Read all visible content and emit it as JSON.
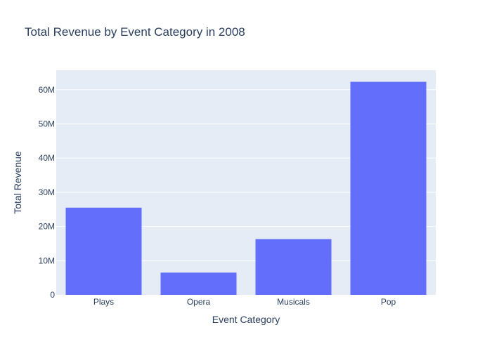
{
  "chart_data": {
    "type": "bar",
    "title": "Total Revenue by Event Category in 2008",
    "xlabel": "Event Category",
    "ylabel": "Total Revenue",
    "categories": [
      "Plays",
      "Opera",
      "Musicals",
      "Pop"
    ],
    "values": [
      25500000,
      6500000,
      16300000,
      62300000
    ],
    "ylim": [
      0,
      65700000
    ],
    "yticks": [
      0,
      10000000,
      20000000,
      30000000,
      40000000,
      50000000,
      60000000
    ],
    "ytick_labels": [
      "0",
      "10M",
      "20M",
      "30M",
      "40M",
      "50M",
      "60M"
    ],
    "grid": true,
    "bar_color": "#636efa",
    "plot_background": "#e5ecf6"
  }
}
